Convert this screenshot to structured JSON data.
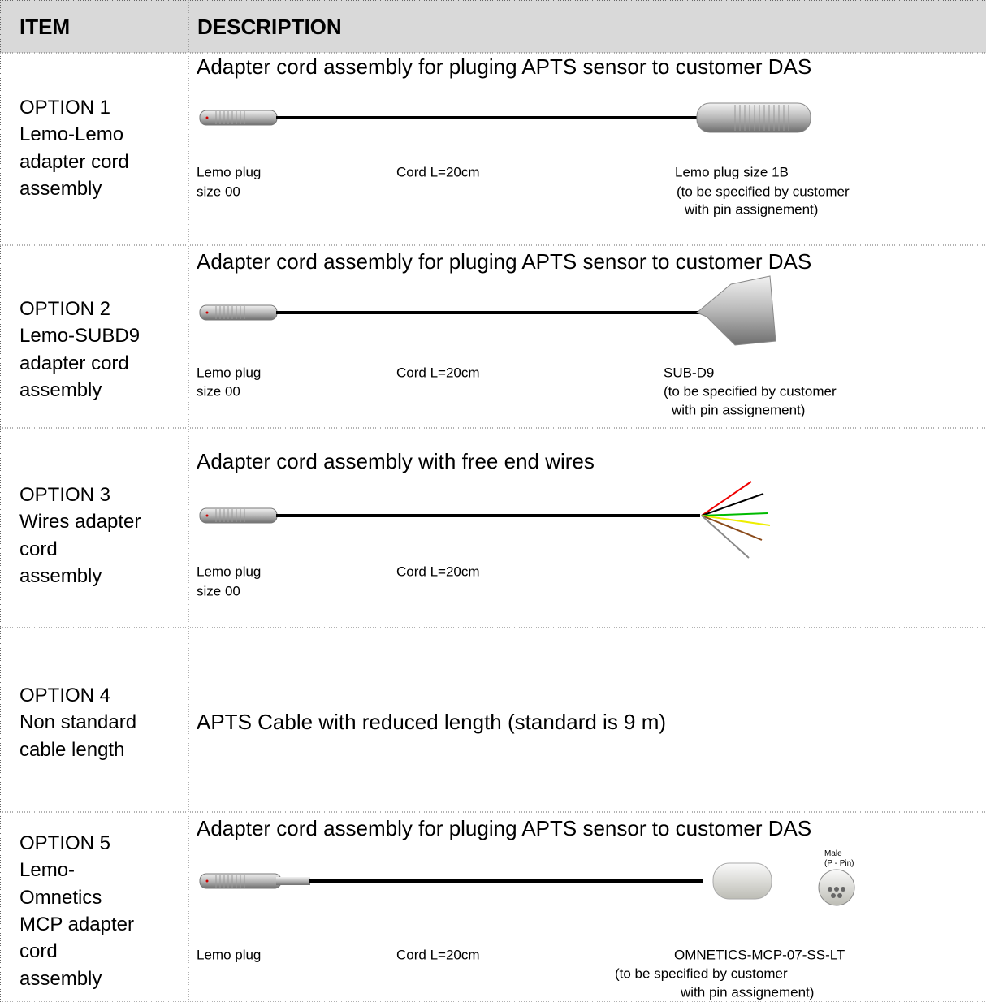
{
  "header": {
    "item": "ITEM",
    "description": "DESCRIPTION"
  },
  "rows": [
    {
      "item": [
        "OPTION 1",
        "Lemo-Lemo",
        "adapter cord",
        "assembly"
      ],
      "description": "Adapter cord assembly for pluging APTS sensor to customer DAS",
      "labels": {
        "left": [
          "Lemo plug",
          "size 00"
        ],
        "middle": [
          "Cord L=20cm"
        ],
        "right": [
          "Lemo plug size 1B",
          "(to be specified by customer",
          "with pin assignement)"
        ]
      }
    },
    {
      "item": [
        "OPTION 2",
        "Lemo-SUBD9",
        "adapter cord",
        "assembly"
      ],
      "description": "Adapter cord assembly for pluging APTS sensor to customer DAS",
      "labels": {
        "left": [
          "Lemo plug",
          "size 00"
        ],
        "middle": [
          "Cord L=20cm"
        ],
        "right": [
          "SUB-D9",
          "(to be specified by customer",
          "with pin assignement)"
        ]
      }
    },
    {
      "item": [
        "OPTION 3",
        "Wires adapter",
        "cord",
        "assembly"
      ],
      "description": "Adapter cord assembly with free end wires",
      "labels": {
        "left": [
          "Lemo plug",
          "size 00"
        ],
        "middle": [
          "Cord L=20cm"
        ],
        "right": []
      }
    },
    {
      "item": [
        "OPTION 4",
        "Non standard",
        "cable length"
      ],
      "description": "APTS Cable with reduced length (standard is 9 m)"
    },
    {
      "item": [
        "OPTION 5",
        "Lemo-",
        "Omnetics",
        "MCP adapter",
        "cord",
        "assembly"
      ],
      "description": "Adapter cord assembly for pluging APTS sensor to customer DAS",
      "image_caption": [
        "Male",
        "(P - Pin)"
      ],
      "labels": {
        "left": [
          "Lemo plug"
        ],
        "middle": [
          "Cord L=20cm"
        ],
        "right": [
          "OMNETICS-MCP-07-SS-LT",
          "(to be specified by customer",
          "with pin assignement)"
        ]
      }
    }
  ]
}
